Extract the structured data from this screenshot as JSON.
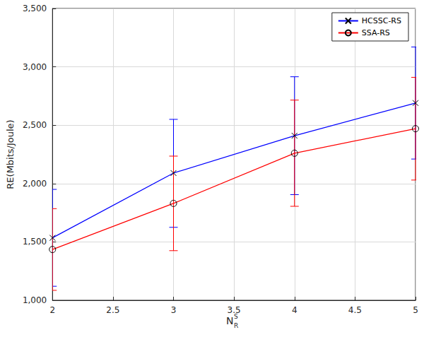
{
  "chart_data": {
    "type": "line",
    "xlabel": {
      "text": "N",
      "sub": "R",
      "sup": "S"
    },
    "ylabel": "RE(Mbits/Joule)",
    "x": [
      2,
      3,
      4,
      5
    ],
    "series": [
      {
        "name": "HCSSC-RS",
        "color": "#0000ff",
        "marker": "x",
        "values": [
          1535,
          2090,
          2410,
          2690
        ],
        "error_lower": [
          1120,
          1625,
          1905,
          2210
        ],
        "error_upper": [
          1950,
          2550,
          2915,
          3170
        ]
      },
      {
        "name": "SSA-RS",
        "color": "#ff0000",
        "marker": "circle",
        "values": [
          1435,
          1830,
          2260,
          2470
        ],
        "error_lower": [
          1085,
          1425,
          1805,
          2030
        ],
        "error_upper": [
          1785,
          2235,
          2715,
          2910
        ]
      }
    ],
    "xlim": [
      2,
      5
    ],
    "xticks": [
      2,
      2.5,
      3,
      3.5,
      4,
      4.5,
      5
    ],
    "ylim": [
      1000,
      3500
    ],
    "yticks": [
      1000,
      1500,
      2000,
      2500,
      3000,
      3500
    ],
    "grid": true,
    "legend": "upper right"
  }
}
